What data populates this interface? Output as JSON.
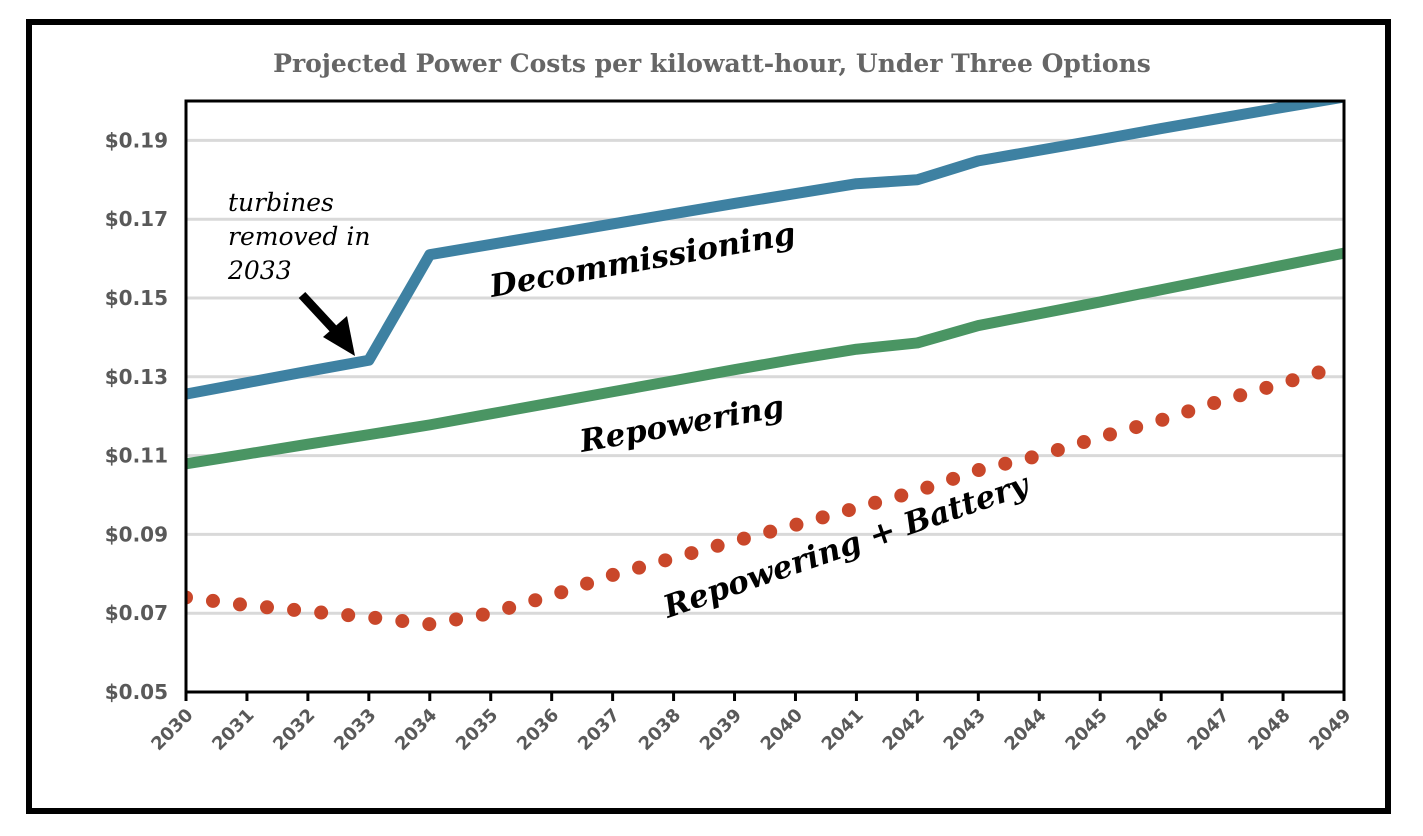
{
  "chart_data": {
    "type": "line",
    "title": "Projected Power Costs per kilowatt-hour, Under Three Options",
    "xlabel": "",
    "ylabel": "",
    "ylim": [
      0.05,
      0.2
    ],
    "yticks": [
      0.05,
      0.07,
      0.09,
      0.11,
      0.13,
      0.15,
      0.17,
      0.19
    ],
    "ytick_labels": [
      "$0.05",
      "$0.07",
      "$0.09",
      "$0.11",
      "$0.13",
      "$0.15",
      "$0.17",
      "$0.19"
    ],
    "grid": true,
    "legend": "none (series labeled inline)",
    "x": [
      "2030",
      "2031",
      "2032",
      "2033",
      "2034",
      "2035",
      "2036",
      "2037",
      "2038",
      "2039",
      "2040",
      "2041",
      "2042",
      "2043",
      "2044",
      "2045",
      "2046",
      "2047",
      "2048",
      "2049"
    ],
    "series": [
      {
        "name": "Decommissioning",
        "color": "#3E81A2",
        "style": "solid",
        "values": [
          0.1256,
          0.1285,
          0.1314,
          0.1342,
          0.161,
          0.1636,
          0.1662,
          0.1688,
          0.1714,
          0.174,
          0.1765,
          0.179,
          0.18,
          0.1848,
          0.1875,
          0.1902,
          0.193,
          0.1957,
          0.1984,
          0.201
        ]
      },
      {
        "name": "Repowering",
        "color": "#4A9563",
        "style": "solid",
        "values": [
          0.1079,
          0.1104,
          0.1129,
          0.1153,
          0.1178,
          0.1206,
          0.1234,
          0.1262,
          0.129,
          0.1318,
          0.1345,
          0.137,
          0.1386,
          0.143,
          0.146,
          0.149,
          0.1521,
          0.1552,
          0.1583,
          0.1614
        ]
      },
      {
        "name": "Repowering + Battery",
        "color": "#C9472A",
        "style": "dotted",
        "values": [
          0.074,
          0.072,
          0.0705,
          0.069,
          0.0672,
          0.07,
          0.0745,
          0.0797,
          0.084,
          0.0883,
          0.0924,
          0.0967,
          0.101,
          0.1063,
          0.11,
          0.1147,
          0.119,
          0.124,
          0.1284,
          0.133
        ]
      }
    ],
    "annotations": [
      {
        "text_lines": [
          "turbines",
          "removed in",
          "2033"
        ],
        "points_to": {
          "series": "Decommissioning",
          "x": "2033"
        }
      }
    ]
  }
}
